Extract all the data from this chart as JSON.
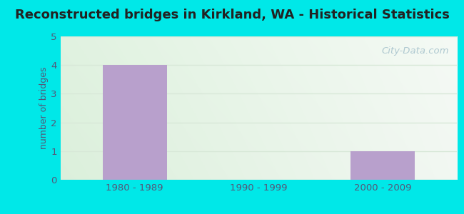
{
  "title": "Reconstructed bridges in Kirkland, WA - Historical Statistics",
  "categories": [
    "1980 - 1989",
    "1990 - 1999",
    "2000 - 2009"
  ],
  "values": [
    4,
    0,
    1
  ],
  "bar_color": "#b8a0cc",
  "ylabel": "number of bridges",
  "ylim": [
    0,
    5
  ],
  "yticks": [
    0,
    1,
    2,
    3,
    4,
    5
  ],
  "outer_bg": "#00e8e8",
  "plot_bg_topleft": "#dff0e0",
  "plot_bg_topright": "#f5f8f2",
  "plot_bg_bottom": "#e8f4e8",
  "title_color": "#222222",
  "title_fontsize": 13,
  "axis_label_color": "#555577",
  "tick_color": "#555577",
  "watermark_text": "City-Data.com",
  "watermark_color": "#aec8d0",
  "grid_color": "#d8e8d8"
}
